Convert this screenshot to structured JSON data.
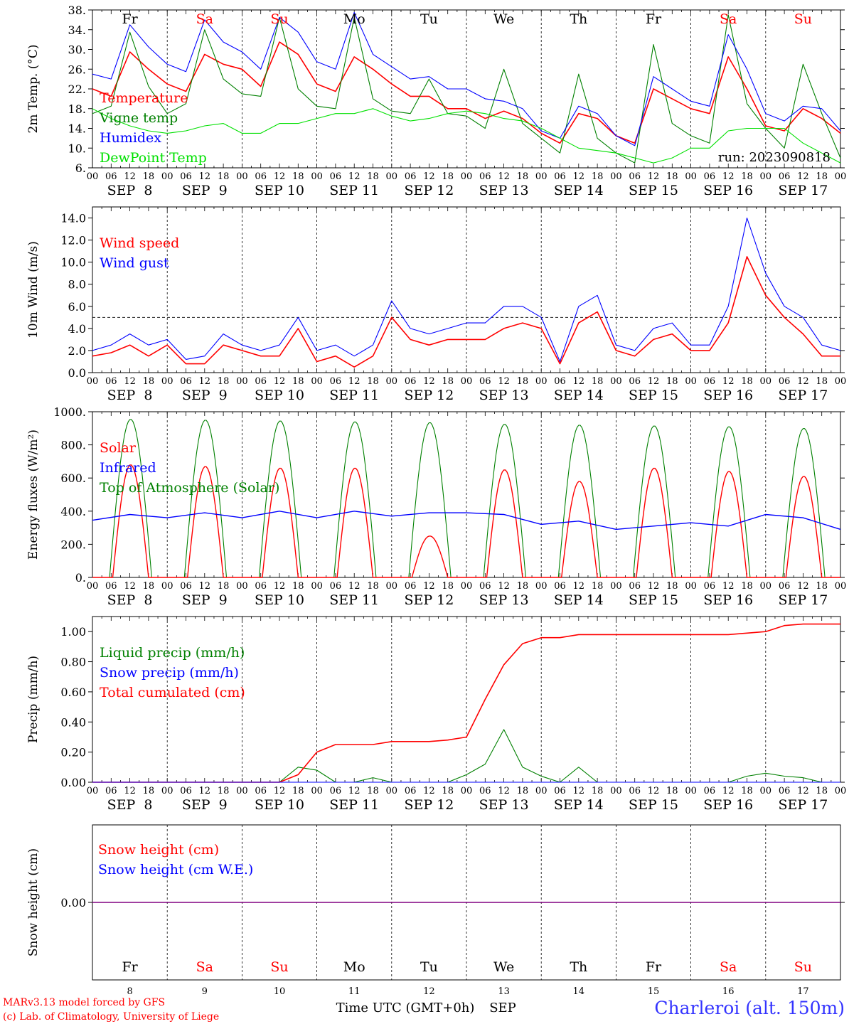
{
  "footer": {
    "credit1": "MARv3.13 model forced by GFS",
    "credit2": "(c) Lab. of Climatology, University of Liege",
    "xlabel": "Time UTC (GMT+0h)",
    "month": "SEP",
    "station": "Charleroi (alt. 150m)"
  },
  "day_names": [
    "Fr",
    "Sa",
    "Su",
    "Mo",
    "Tu",
    "We",
    "Th",
    "Fr",
    "Sa",
    "Su"
  ],
  "weekend": [
    false,
    true,
    true,
    false,
    false,
    false,
    false,
    false,
    true,
    true
  ],
  "day_numbers": [
    "8",
    "9",
    "10",
    "11",
    "12",
    "13",
    "14",
    "15",
    "16",
    "17"
  ],
  "date_labels": [
    "SEP  8",
    "SEP  9",
    "SEP 10",
    "SEP 11",
    "SEP 12",
    "SEP 13",
    "SEP 14",
    "SEP 15",
    "SEP 16",
    "SEP 17"
  ],
  "hour_labels": [
    "00",
    "06",
    "12",
    "18"
  ],
  "final_hour_label": "00",
  "colors": {
    "temperature": "#ff0000",
    "vigne": "#008000",
    "humidex": "#0000ff",
    "dewpoint": "#00e000",
    "snow_cm": "#ff0000",
    "snow_we": "#0000ff",
    "purple": "#800080"
  },
  "chart_data": [
    {
      "type": "line",
      "ylabel": "2m Temp. (°C)",
      "ylim": [
        6,
        38
      ],
      "yticks": [
        "38.",
        "34.",
        "30.",
        "26.",
        "22.",
        "18.",
        "14.",
        "10.",
        "6."
      ],
      "ytick_values": [
        38,
        34,
        30,
        26,
        22,
        18,
        14,
        10,
        6
      ],
      "run_label": "run: 2023090818",
      "legend": [
        "Temperature",
        "Vigne temp",
        "Humidex",
        "DewPoint Temp"
      ],
      "x_hours": [
        0,
        6,
        12,
        18,
        24,
        30,
        36,
        42,
        48,
        54,
        60,
        66,
        72,
        78,
        84,
        90,
        96,
        102,
        108,
        114,
        120,
        126,
        132,
        138,
        144,
        150,
        156,
        162,
        168,
        174,
        180,
        186,
        192,
        198,
        204,
        210,
        216,
        222,
        228,
        234,
        240
      ],
      "series": [
        {
          "name": "Temperature",
          "values": [
            22,
            20.5,
            29.5,
            26,
            23,
            21.5,
            29,
            27,
            26,
            22.5,
            31.5,
            29,
            23,
            21.5,
            28.5,
            26,
            23,
            20.5,
            20.5,
            18,
            18,
            16,
            17.5,
            16,
            13,
            11,
            17,
            16,
            12.5,
            11,
            22,
            20,
            18,
            17,
            28.5,
            22,
            14.5,
            13.5,
            18,
            16,
            13
          ]
        },
        {
          "name": "Vigne temp",
          "values": [
            17,
            18.5,
            33.5,
            22.5,
            17,
            19,
            34,
            24,
            21,
            20.5,
            36.5,
            22,
            18.5,
            18,
            36.5,
            20,
            17.5,
            17,
            24,
            17,
            16.5,
            14,
            26,
            15,
            12,
            9,
            25,
            12,
            9,
            7,
            31,
            15,
            12.5,
            11,
            37,
            19,
            14,
            10,
            27,
            17,
            8
          ]
        },
        {
          "name": "Humidex",
          "values": [
            25,
            24,
            35,
            30.5,
            27,
            25.5,
            36,
            31.5,
            29.5,
            26,
            36.5,
            33.5,
            27.5,
            26,
            37.5,
            29,
            26.5,
            24,
            24.5,
            22,
            22,
            20,
            19.5,
            18,
            13.5,
            12,
            18.5,
            17,
            12.5,
            10.5,
            24.5,
            22,
            19.5,
            18.5,
            33,
            26,
            17,
            15.5,
            18.5,
            18,
            13.5
          ]
        },
        {
          "name": "DewPoint Temp",
          "values": [
            18,
            16,
            14.5,
            13.5,
            13,
            13.5,
            14.5,
            15,
            13,
            13,
            15,
            15,
            16,
            17,
            17,
            18,
            16.5,
            15.5,
            16,
            17,
            17.5,
            17,
            16,
            15.5,
            14,
            12,
            10,
            9.5,
            9,
            8,
            7,
            8,
            10,
            10,
            13.5,
            14,
            14,
            14,
            11,
            9,
            7
          ]
        }
      ]
    },
    {
      "type": "line",
      "ylabel": "10m Wind (m/s)",
      "ylim": [
        0,
        15
      ],
      "yticks": [
        "14.0",
        "12.0",
        "10.0",
        "8.0",
        "6.0",
        "4.0",
        "2.0",
        "0.0"
      ],
      "ytick_values": [
        14,
        12,
        10,
        8,
        6,
        4,
        2,
        0
      ],
      "reference_line": 5,
      "legend": [
        "Wind speed",
        "Wind gust"
      ],
      "x_hours": [
        0,
        6,
        12,
        18,
        24,
        30,
        36,
        42,
        48,
        54,
        60,
        66,
        72,
        78,
        84,
        90,
        96,
        102,
        108,
        114,
        120,
        126,
        132,
        138,
        144,
        150,
        156,
        162,
        168,
        174,
        180,
        186,
        192,
        198,
        204,
        210,
        216,
        222,
        228,
        234,
        240
      ],
      "series": [
        {
          "name": "Wind speed",
          "values": [
            1.5,
            1.8,
            2.5,
            1.5,
            2.5,
            0.8,
            0.8,
            2.5,
            2,
            1.5,
            1.5,
            4,
            1,
            1.5,
            0.5,
            1.5,
            5,
            3,
            2.5,
            3,
            3,
            3,
            4,
            4.5,
            4,
            0.8,
            4.5,
            5.5,
            2,
            1.5,
            3,
            3.5,
            2,
            2,
            4.5,
            10.5,
            7,
            5,
            3.5,
            1.5,
            1.5
          ]
        },
        {
          "name": "Wind gust",
          "values": [
            2,
            2.5,
            3.5,
            2.5,
            3,
            1.2,
            1.5,
            3.5,
            2.5,
            2,
            2.5,
            5,
            2,
            2.5,
            1.5,
            2.5,
            6.5,
            4,
            3.5,
            4,
            4.5,
            4.5,
            6,
            6,
            5,
            1,
            6,
            7,
            2.5,
            2,
            4,
            4.5,
            2.5,
            2.5,
            6,
            14,
            9,
            6,
            5,
            2.5,
            2
          ]
        }
      ]
    },
    {
      "type": "line",
      "ylabel": "Energy fluxes (W/m²)",
      "ylim": [
        0,
        1000
      ],
      "yticks": [
        "1000.",
        "800.",
        "600.",
        "400.",
        "200.",
        "0."
      ],
      "ytick_values": [
        1000,
        800,
        600,
        400,
        200,
        0
      ],
      "legend": [
        "Solar",
        "Infrared",
        "Top of Atmosphere (Solar)"
      ],
      "daily_peaks": {
        "solar": [
          680,
          670,
          660,
          660,
          250,
          650,
          580,
          660,
          640,
          610
        ],
        "toa": [
          955,
          950,
          945,
          940,
          935,
          925,
          920,
          915,
          910,
          900
        ]
      },
      "x_hours": [
        0,
        12,
        24,
        36,
        48,
        60,
        72,
        84,
        96,
        108,
        120,
        132,
        144,
        156,
        168,
        180,
        192,
        204,
        216,
        228,
        240
      ],
      "series": [
        {
          "name": "Infrared",
          "values": [
            345,
            380,
            360,
            390,
            360,
            400,
            360,
            400,
            370,
            390,
            390,
            380,
            320,
            340,
            290,
            310,
            330,
            310,
            380,
            360,
            290
          ]
        }
      ]
    },
    {
      "type": "line",
      "ylabel": "Precip (mm/h)",
      "ylim": [
        0,
        1.1
      ],
      "yticks": [
        "1.00",
        "0.80",
        "0.60",
        "0.40",
        "0.20",
        "0.00"
      ],
      "ytick_values": [
        1.0,
        0.8,
        0.6,
        0.4,
        0.2,
        0.0
      ],
      "legend": [
        "Liquid precip (mm/h)",
        "Snow precip (mm/h)",
        "Total cumulated (cm)"
      ],
      "x_hours": [
        0,
        6,
        12,
        18,
        24,
        30,
        36,
        42,
        48,
        54,
        60,
        66,
        72,
        78,
        84,
        90,
        96,
        102,
        108,
        114,
        120,
        126,
        132,
        138,
        144,
        150,
        156,
        162,
        168,
        174,
        180,
        186,
        192,
        198,
        204,
        210,
        216,
        222,
        228,
        234,
        240
      ],
      "series": [
        {
          "name": "Liquid precip (mm/h)",
          "values": [
            0,
            0,
            0,
            0,
            0,
            0,
            0,
            0,
            0,
            0,
            0,
            0.1,
            0.08,
            0,
            0,
            0.03,
            0,
            0,
            0,
            0,
            0.05,
            0.12,
            0.35,
            0.1,
            0.04,
            0,
            0.1,
            0,
            0,
            0,
            0,
            0,
            0,
            0,
            0,
            0.04,
            0.06,
            0.04,
            0.03,
            0,
            0
          ]
        },
        {
          "name": "Total cumulated (cm)",
          "values": [
            0,
            0,
            0,
            0,
            0,
            0,
            0,
            0,
            0,
            0,
            0,
            0.05,
            0.2,
            0.25,
            0.25,
            0.25,
            0.27,
            0.27,
            0.27,
            0.28,
            0.3,
            0.55,
            0.78,
            0.92,
            0.96,
            0.96,
            0.98,
            0.98,
            0.98,
            0.98,
            0.98,
            0.98,
            0.98,
            0.98,
            0.98,
            0.99,
            1.0,
            1.04,
            1.05,
            1.05,
            1.05
          ]
        }
      ]
    },
    {
      "type": "line",
      "ylabel": "Snow height (cm)",
      "yticks": [
        "0.00"
      ],
      "ytick_values": [
        0
      ],
      "legend": [
        "Snow height (cm)",
        "Snow height (cm W.E.)"
      ],
      "series": [
        {
          "name": "Snow height (cm)",
          "values": [
            0,
            0
          ]
        },
        {
          "name": "Snow height (cm W.E.)",
          "values": [
            0,
            0
          ]
        }
      ]
    }
  ]
}
